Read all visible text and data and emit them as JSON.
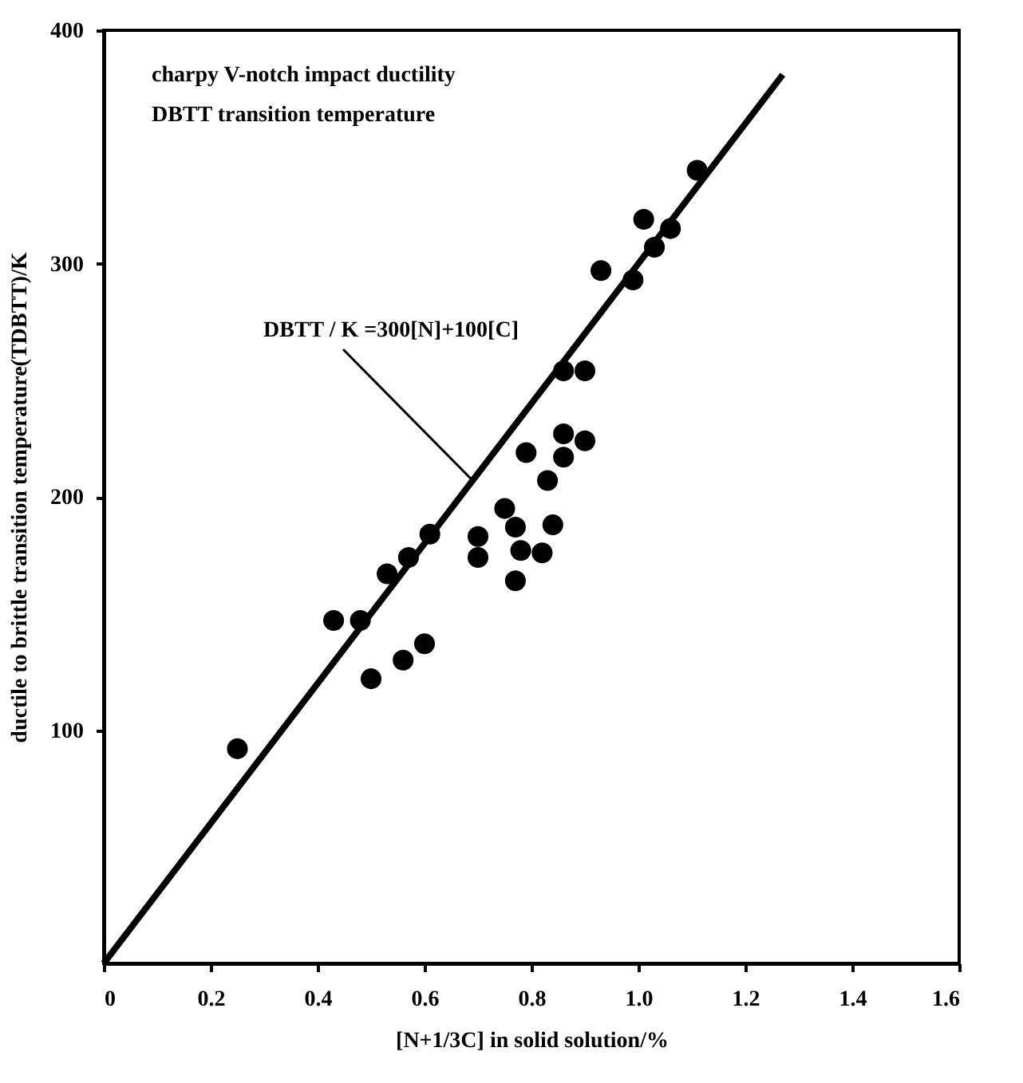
{
  "chart_data": {
    "type": "scatter",
    "xlabel": "[N+1/3C] in solid solution/%",
    "ylabel": "ductile to brittle transition temperature(TDBTT)/K",
    "xlim": [
      0,
      1.6
    ],
    "ylim": [
      0,
      400
    ],
    "xticks": [
      0,
      0.2,
      0.4,
      0.6,
      {
        "value": 1,
        "label": "1.0"
      },
      0.8,
      1.2,
      1.4,
      1.6
    ],
    "yticks": [
      100,
      200,
      300,
      400
    ],
    "marker": "circle",
    "grid": false,
    "annotations": [
      "charpy V-notch impact ductility",
      "DBTT transition temperature",
      {
        "text": "DBTT / K =300[N]+100[C]",
        "x": 0.69,
        "y": 207
      }
    ],
    "series": [
      {
        "color": "#000000",
        "x": [
          0.25,
          0.43,
          0.48,
          0.5,
          0.53,
          0.56,
          0.57,
          0.6,
          0.61,
          0.7,
          0.7,
          0.75,
          0.77,
          0.77,
          0.78,
          0.82,
          0.84,
          0.79,
          0.83,
          0.86,
          0.86,
          0.86,
          0.9,
          0.9,
          0.93,
          0.99,
          1.01,
          1.03,
          1.06,
          1.11
        ],
        "values": [
          92,
          147,
          147,
          122,
          167,
          130,
          174,
          137,
          184,
          183,
          174,
          195,
          187,
          164,
          177,
          176,
          188,
          219,
          207,
          217,
          227,
          254,
          254,
          224,
          297,
          293,
          319,
          307,
          315,
          340
        ]
      },
      {
        "type": "line",
        "color": "#000000",
        "line_style": "solid",
        "marker": "none",
        "x": [
          0,
          1.27
        ],
        "values": [
          0,
          381
        ]
      }
    ]
  }
}
